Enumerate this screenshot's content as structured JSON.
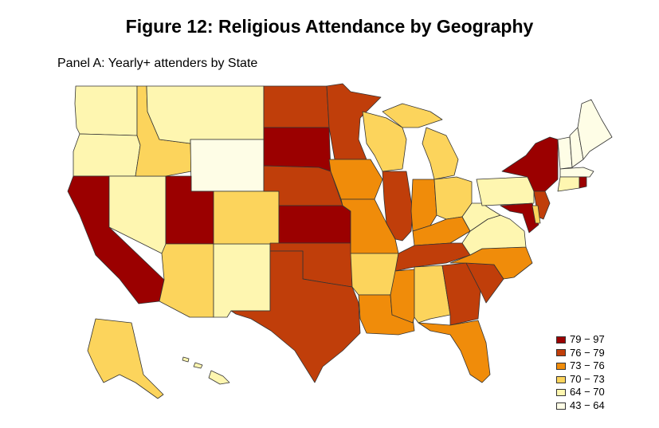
{
  "title": "Figure 12: Religious Attendance by Geography",
  "panel_label": "Panel A: Yearly+ attenders by State",
  "legend": [
    {
      "label": "79 − 97",
      "color": "#9b0000"
    },
    {
      "label": "76 − 79",
      "color": "#c03e0a"
    },
    {
      "label": "73 − 76",
      "color": "#f08c0a"
    },
    {
      "label": "70 − 73",
      "color": "#fcd45c"
    },
    {
      "label": "64 − 70",
      "color": "#fef6b0"
    },
    {
      "label": "43 − 64",
      "color": "#fefde6"
    }
  ],
  "state_classes": {
    "WA": 4,
    "OR": 4,
    "CA": 0,
    "NV": 4,
    "ID": 3,
    "MT": 4,
    "WY": 5,
    "UT": 0,
    "AZ": 3,
    "NM": 4,
    "CO": 3,
    "ND": 1,
    "SD": 0,
    "NE": 1,
    "KS": 0,
    "OK": 1,
    "TX": 1,
    "MN": 1,
    "IA": 2,
    "MO": 2,
    "AR": 3,
    "LA": 2,
    "WI": 3,
    "IL": 1,
    "MS": 2,
    "MI": 3,
    "IN": 2,
    "KY": 2,
    "TN": 1,
    "AL": 3,
    "OH": 3,
    "WV": 4,
    "VA": 4,
    "NC": 2,
    "SC": 1,
    "GA": 1,
    "FL": 2,
    "PA": 4,
    "NY": 0,
    "NJ": 1,
    "MD": 0,
    "DE": 3,
    "VT": 5,
    "NH": 5,
    "ME": 5,
    "MA": 5,
    "CT": 4,
    "RI": 0,
    "AK": 3,
    "HI": 4
  }
}
